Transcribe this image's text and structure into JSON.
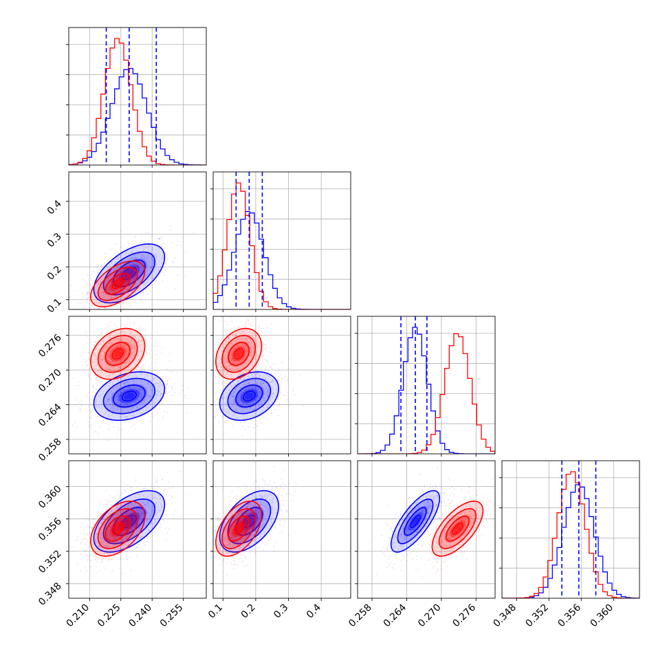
{
  "chart_data": {
    "type": "corner",
    "parameters": 4,
    "grid": true,
    "series": [
      {
        "color": "#0000ff",
        "mean": [
          0.229,
          0.18,
          0.2655,
          0.3557
        ],
        "sigma": [
          0.0085,
          0.045,
          0.0021,
          0.0019
        ],
        "corr": {
          "1-0": 0.55,
          "2-0": 0.3,
          "2-1": 0.3,
          "3-0": 0.55,
          "3-1": 0.5,
          "3-2": 0.75
        }
      },
      {
        "color": "#ff0000",
        "mean": [
          0.2235,
          0.148,
          0.2728,
          0.3548
        ],
        "sigma": [
          0.0065,
          0.035,
          0.0022,
          0.0017
        ],
        "corr": {
          "1-0": 0.55,
          "2-0": 0.3,
          "2-1": 0.3,
          "3-0": 0.45,
          "3-1": 0.5,
          "3-2": 0.65
        }
      }
    ],
    "quantiles": [
      {
        "color": "#0000ff",
        "values": [
          0.218,
          0.229,
          0.242
        ]
      },
      {
        "color": "#0000ff",
        "values": [
          0.14,
          0.18,
          0.22
        ]
      },
      {
        "color": "#0000ff",
        "values": [
          0.263,
          0.2655,
          0.2675
        ]
      },
      {
        "color": "#0000ff",
        "values": [
          0.3536,
          0.3557,
          0.3578
        ]
      }
    ],
    "axes": [
      {
        "range": [
          0.2,
          0.266
        ],
        "ticks": [
          "0.210",
          "0.225",
          "0.240",
          "0.255"
        ],
        "tick_values": [
          0.21,
          0.225,
          0.24,
          0.255
        ]
      },
      {
        "range": [
          0.07,
          0.49
        ],
        "ticks": [
          "0.1",
          "0.2",
          "0.3",
          "0.4"
        ],
        "tick_values": [
          0.1,
          0.2,
          0.3,
          0.4
        ]
      },
      {
        "range": [
          0.2555,
          0.2793
        ],
        "ticks": [
          "0.258",
          "0.264",
          "0.270",
          "0.276"
        ],
        "tick_values": [
          0.258,
          0.264,
          0.27,
          0.276
        ]
      },
      {
        "range": [
          0.3462,
          0.3632
        ],
        "ticks": [
          "0.348",
          "0.352",
          "0.356",
          "0.360"
        ],
        "tick_values": [
          0.348,
          0.352,
          0.356,
          0.36
        ]
      }
    ]
  }
}
